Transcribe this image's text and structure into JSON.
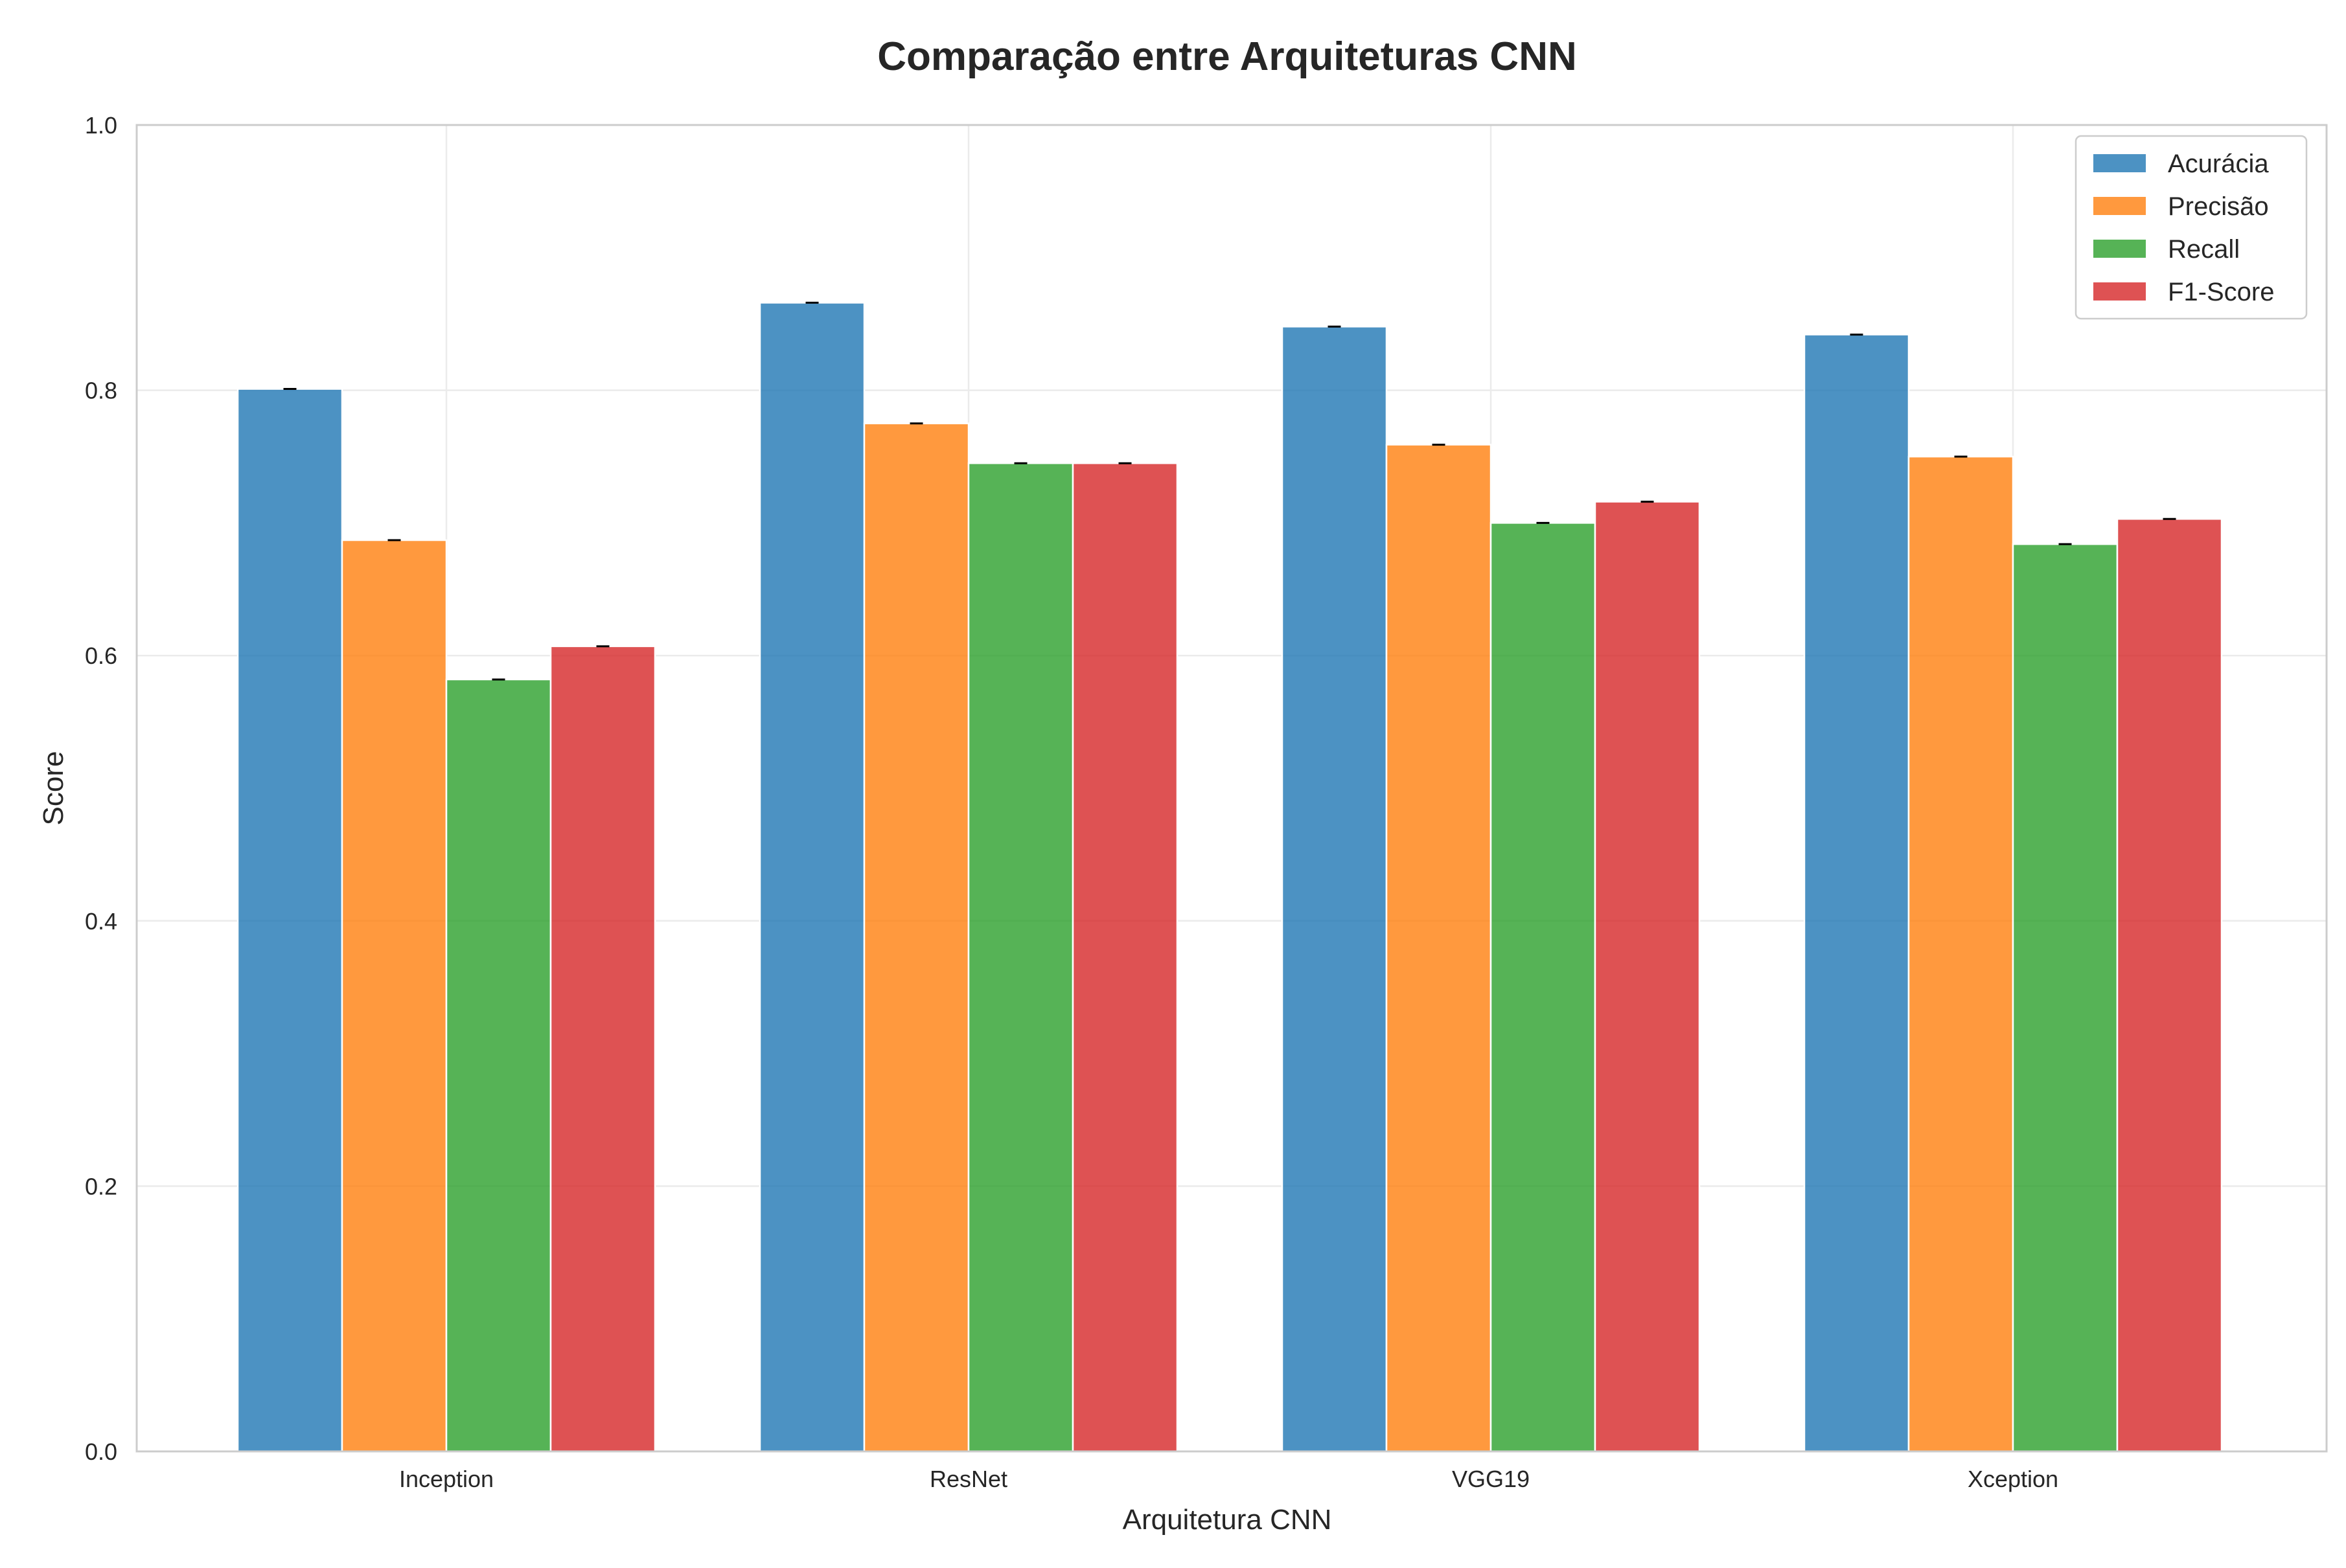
{
  "chart_data": {
    "type": "bar",
    "title": "Comparação entre Arquiteturas CNN",
    "xlabel": "Arquitetura CNN",
    "ylabel": "Score",
    "categories": [
      "Inception",
      "ResNet",
      "VGG19",
      "Xception"
    ],
    "ylim": [
      0,
      1.0
    ],
    "yticks": [
      0.0,
      0.2,
      0.4,
      0.6,
      0.8,
      1.0
    ],
    "ytick_labels": [
      "0.0",
      "0.2",
      "0.4",
      "0.6",
      "0.8",
      "1.0"
    ],
    "grid": true,
    "legend_position": "top-right",
    "series": [
      {
        "name": "Acurácia",
        "color": "#1f77b4",
        "values": [
          0.801,
          0.866,
          0.848,
          0.842
        ]
      },
      {
        "name": "Precisão",
        "color": "#ff7f0e",
        "values": [
          0.687,
          0.775,
          0.759,
          0.75
        ]
      },
      {
        "name": "Recall",
        "color": "#2ca02c",
        "values": [
          0.582,
          0.745,
          0.7,
          0.684
        ]
      },
      {
        "name": "F1-Score",
        "color": "#d62728",
        "values": [
          0.607,
          0.745,
          0.716,
          0.703
        ]
      }
    ]
  }
}
